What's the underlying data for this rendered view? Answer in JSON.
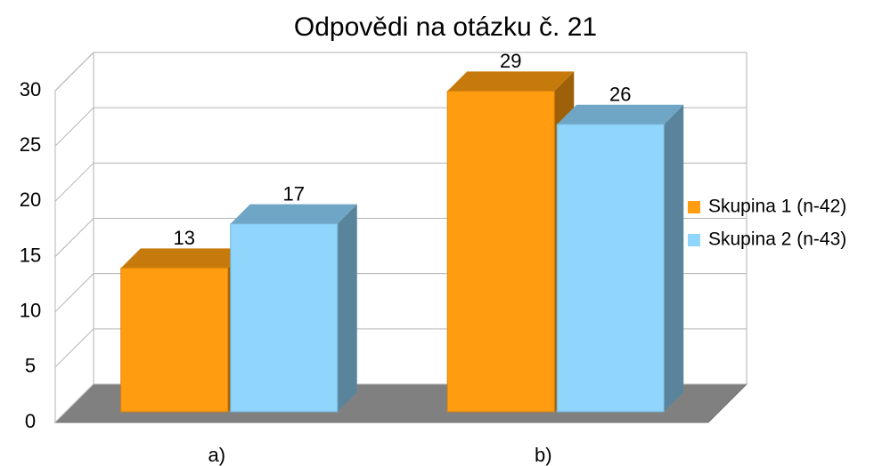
{
  "chart_data": {
    "type": "bar3d",
    "title": "Odpovědi na otázku č. 21",
    "categories": [
      "a)",
      "b)"
    ],
    "series": [
      {
        "name": "Skupina 1 (n-42)",
        "color": "#ff9c0f",
        "values": [
          13,
          29
        ]
      },
      {
        "name": "Skupina 2 (n-43)",
        "color": "#8fd5fc",
        "values": [
          17,
          26
        ]
      }
    ],
    "ylim": [
      0,
      30
    ],
    "yticks": [
      0,
      5,
      10,
      15,
      20,
      25,
      30
    ],
    "grid": true,
    "legend": "right"
  }
}
